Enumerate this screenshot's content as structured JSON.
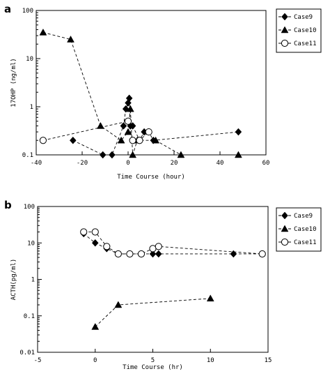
{
  "chart_data": [
    {
      "panel": "a",
      "type": "scatter",
      "xlabel": "Time Course (hour)",
      "ylabel": "17OHP (ng/ml)",
      "xlim": [
        -40,
        60
      ],
      "xticks": [
        -40,
        -20,
        0,
        20,
        40,
        60
      ],
      "ylim": [
        0.1,
        100
      ],
      "yscale": "log",
      "yticks": [
        0.1,
        1,
        10,
        100
      ],
      "legend_position": "top-right",
      "series": [
        {
          "name": "Case9",
          "marker": "diamond",
          "x": [
            -24,
            -11,
            -7,
            -2,
            -1,
            0,
            0.5,
            1,
            2,
            5,
            7,
            9,
            11,
            48
          ],
          "y": [
            0.2,
            0.1,
            0.1,
            0.4,
            0.9,
            1.2,
            1.5,
            0.4,
            0.4,
            0.2,
            0.3,
            0.3,
            0.2,
            0.3
          ]
        },
        {
          "name": "Case10",
          "marker": "triangle",
          "x": [
            -37,
            -25,
            -12,
            -3,
            0,
            1,
            2,
            4,
            12,
            23,
            48
          ],
          "y": [
            35,
            25,
            0.4,
            0.2,
            0.3,
            0.9,
            0.1,
            0.2,
            0.2,
            0.1,
            0.1
          ]
        },
        {
          "name": "Case11",
          "marker": "circle",
          "x": [
            -37,
            0,
            2,
            5,
            9
          ],
          "y": [
            0.2,
            0.5,
            0.2,
            0.2,
            0.3
          ]
        }
      ]
    },
    {
      "panel": "b",
      "type": "scatter",
      "xlabel": "Time Course (hr)",
      "ylabel": "ACTH(pg/ml)",
      "xlim": [
        -5,
        15
      ],
      "xticks": [
        -5,
        0,
        5,
        10,
        15
      ],
      "ylim": [
        0.01,
        100
      ],
      "yscale": "log",
      "yticks": [
        0.01,
        0.1,
        1,
        10,
        100
      ],
      "legend_position": "top-right",
      "series": [
        {
          "name": "Case9",
          "marker": "diamond",
          "x": [
            -1,
            0,
            1,
            2,
            3,
            4,
            5,
            5.5,
            12,
            14.5
          ],
          "y": [
            18,
            10,
            7,
            5,
            5,
            5,
            5,
            5,
            5,
            5
          ]
        },
        {
          "name": "Case10",
          "marker": "triangle",
          "x": [
            0,
            2,
            10
          ],
          "y": [
            0.05,
            0.2,
            0.3
          ]
        },
        {
          "name": "Case11",
          "marker": "circle",
          "x": [
            -1,
            0,
            1,
            2,
            3,
            4,
            5,
            5.5,
            14.5
          ],
          "y": [
            20,
            20,
            8,
            5,
            5,
            5,
            7,
            8,
            5
          ]
        }
      ]
    }
  ]
}
